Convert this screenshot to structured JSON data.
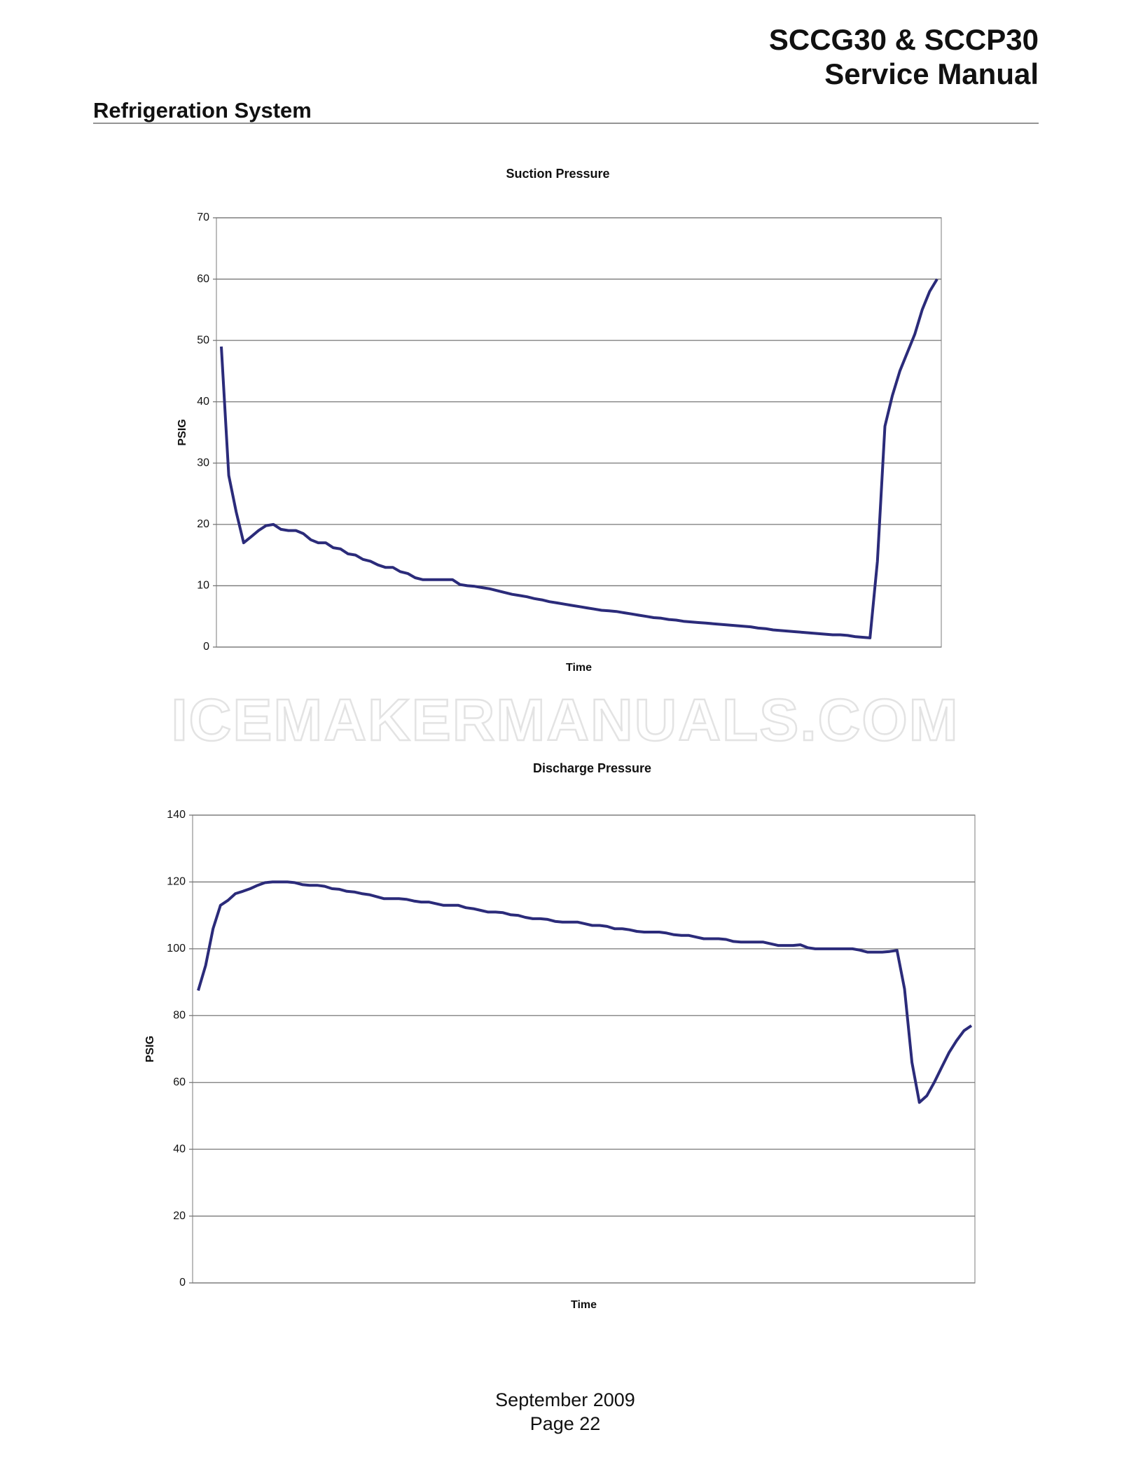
{
  "header": {
    "title_line1": "SCCG30 & SCCP30",
    "title_line2": "Service Manual",
    "section": "Refrigeration System"
  },
  "watermark": "ICEMAKERMANUALS.COM",
  "chart_data": [
    {
      "type": "line",
      "title": "Suction Pressure",
      "xlabel": "Time",
      "ylabel": "PSIG",
      "color": "#2b2b7a",
      "grid": true,
      "ylim": [
        0,
        70
      ],
      "yticks": [
        0,
        10,
        20,
        30,
        40,
        50,
        60,
        70
      ],
      "values": [
        49,
        28,
        22,
        17,
        18,
        19,
        19.8,
        20,
        19.2,
        19,
        19,
        18.5,
        17.5,
        17,
        17,
        16.2,
        16,
        15.2,
        15,
        14.3,
        14,
        13.4,
        13,
        13,
        12.3,
        12,
        11.3,
        11,
        11,
        11,
        11,
        11,
        10.2,
        10,
        9.9,
        9.7,
        9.5,
        9.2,
        8.9,
        8.6,
        8.4,
        8.2,
        7.9,
        7.7,
        7.4,
        7.2,
        7.0,
        6.8,
        6.6,
        6.4,
        6.2,
        6.0,
        5.9,
        5.8,
        5.6,
        5.4,
        5.2,
        5.0,
        4.8,
        4.7,
        4.5,
        4.4,
        4.2,
        4.1,
        4.0,
        3.9,
        3.8,
        3.7,
        3.6,
        3.5,
        3.4,
        3.3,
        3.1,
        3.0,
        2.8,
        2.7,
        2.6,
        2.5,
        2.4,
        2.3,
        2.2,
        2.1,
        2.0,
        2.0,
        1.9,
        1.7,
        1.6,
        1.5,
        14,
        36,
        41,
        45,
        48,
        51,
        55,
        58,
        60
      ]
    },
    {
      "type": "line",
      "title": "Discharge Pressure",
      "xlabel": "Time",
      "ylabel": "PSIG",
      "color": "#2b2b7a",
      "grid": true,
      "ylim": [
        0,
        140
      ],
      "yticks": [
        0,
        20,
        40,
        60,
        80,
        100,
        120,
        140
      ],
      "values": [
        87.5,
        95,
        106,
        113,
        114.5,
        116.5,
        117.2,
        118,
        119,
        119.8,
        120,
        120,
        120,
        119.8,
        119.2,
        119,
        119,
        118.7,
        118,
        117.8,
        117.2,
        117,
        116.5,
        116.2,
        115.6,
        115,
        115,
        115,
        114.8,
        114.3,
        114,
        114,
        113.5,
        113,
        113,
        113,
        112.3,
        112,
        111.5,
        111,
        111,
        110.8,
        110.2,
        110,
        109.4,
        109,
        109,
        108.8,
        108.2,
        108,
        108,
        108,
        107.5,
        107,
        107,
        106.7,
        106,
        106,
        105.7,
        105.2,
        105,
        105,
        105,
        104.7,
        104.2,
        104,
        104,
        103.5,
        103,
        103,
        103,
        102.8,
        102.2,
        102,
        102,
        102,
        102,
        101.5,
        101,
        101,
        101,
        101.2,
        100.3,
        100,
        100,
        100,
        100,
        100,
        100,
        99.6,
        99,
        99,
        99,
        99.2,
        99.5,
        88,
        66,
        54,
        56,
        60,
        64.5,
        69,
        72.5,
        75.5,
        77
      ]
    }
  ],
  "footer": {
    "date": "September 2009",
    "page": "Page 22"
  }
}
